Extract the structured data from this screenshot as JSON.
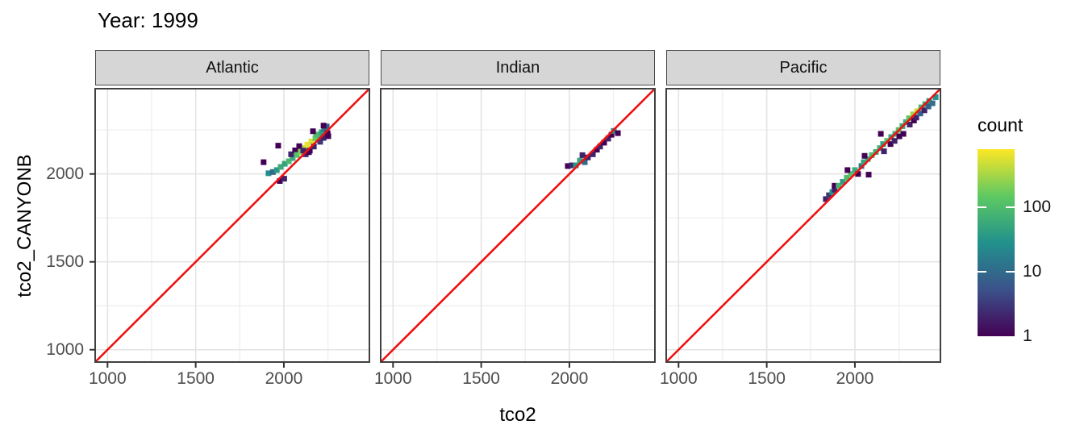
{
  "title": "Year: 1999",
  "legend": {
    "title": "count",
    "tick_values": [
      100,
      10,
      1
    ],
    "scale": "log10",
    "max_count": 800
  },
  "colors": {
    "background": "#ffffff",
    "panel_border": "#404040",
    "strip_fill": "#d6d6d6",
    "strip_border": "#4a4a4a",
    "grid_major": "#e4e4e4",
    "grid_minor": "#f0f0f0",
    "tick_mark": "#333333",
    "tick_label": "#4d4d4d",
    "identity_line": "#ee1111",
    "viridis_stops": [
      "#440154",
      "#3b528b",
      "#21918c",
      "#5ec962",
      "#fde725"
    ]
  },
  "chart_data": {
    "type": "heatmap",
    "subtype": "bin2d faceted scatter (geom_bin2d with y=x reference line)",
    "title": "Year: 1999",
    "xlabel": "tco2",
    "ylabel": "tco2_CANYONB",
    "x_range": [
      930,
      2485
    ],
    "y_range": [
      930,
      2485
    ],
    "x_ticks": [
      1000,
      1500,
      2000
    ],
    "y_ticks": [
      1000,
      1500,
      2000
    ],
    "minor_ticks": [
      1250,
      1750,
      2250
    ],
    "grid": true,
    "legend_position": "right",
    "bin_size": 32,
    "fill_legend": {
      "title": "count",
      "ticks": [
        1,
        10,
        100
      ],
      "scale": "log10",
      "palette": "viridis"
    },
    "reference_line": "y = x (red)",
    "facets": [
      {
        "label": "Atlantic",
        "bins": [
          [
            1885,
            2067,
            1
          ],
          [
            1968,
            2161,
            1
          ],
          [
            1913,
            2004,
            25
          ],
          [
            1938,
            2011,
            10
          ],
          [
            1960,
            2022,
            35
          ],
          [
            1977,
            1960,
            1
          ],
          [
            2002,
            1973,
            2
          ],
          [
            1982,
            2040,
            60
          ],
          [
            2005,
            2058,
            45
          ],
          [
            2028,
            2072,
            90
          ],
          [
            2050,
            2090,
            60
          ],
          [
            2041,
            2112,
            2
          ],
          [
            2064,
            2134,
            1
          ],
          [
            2087,
            2158,
            1
          ],
          [
            2073,
            2108,
            120
          ],
          [
            2096,
            2126,
            220
          ],
          [
            2119,
            2147,
            400
          ],
          [
            2133,
            2167,
            650
          ],
          [
            2156,
            2185,
            550
          ],
          [
            2110,
            2133,
            2
          ],
          [
            2124,
            2112,
            2
          ],
          [
            2147,
            2133,
            1
          ],
          [
            2170,
            2156,
            2
          ],
          [
            2142,
            2124,
            1
          ],
          [
            2179,
            2203,
            160
          ],
          [
            2183,
            2225,
            110
          ],
          [
            2197,
            2220,
            90
          ],
          [
            2215,
            2238,
            40
          ],
          [
            2229,
            2256,
            15
          ],
          [
            2243,
            2270,
            8
          ],
          [
            2206,
            2183,
            3
          ],
          [
            2225,
            2205,
            2
          ],
          [
            2248,
            2232,
            1
          ],
          [
            2252,
            2215,
            1
          ],
          [
            2225,
            2275,
            1
          ],
          [
            2165,
            2243,
            1
          ]
        ]
      },
      {
        "label": "Indian",
        "bins": [
          [
            1991,
            2045,
            1
          ],
          [
            2014,
            2049,
            2
          ],
          [
            2037,
            2049,
            35
          ],
          [
            2060,
            2076,
            50
          ],
          [
            2087,
            2067,
            10
          ],
          [
            2074,
            2107,
            2
          ],
          [
            2105,
            2094,
            2
          ],
          [
            2133,
            2112,
            2
          ],
          [
            2156,
            2138,
            1
          ],
          [
            2174,
            2156,
            2
          ],
          [
            2197,
            2178,
            1
          ],
          [
            2220,
            2201,
            2
          ],
          [
            2239,
            2223,
            1
          ],
          [
            2252,
            2245,
            30
          ],
          [
            2275,
            2232,
            1
          ]
        ]
      },
      {
        "label": "Pacific",
        "bins": [
          [
            1835,
            1857,
            2
          ],
          [
            1853,
            1879,
            3
          ],
          [
            1872,
            1897,
            30
          ],
          [
            1885,
            1911,
            2
          ],
          [
            1885,
            1933,
            1
          ],
          [
            1908,
            1933,
            80
          ],
          [
            1931,
            1955,
            40
          ],
          [
            1954,
            1978,
            100
          ],
          [
            1977,
            2000,
            120
          ],
          [
            2000,
            2022,
            60
          ],
          [
            2018,
            2000,
            1
          ],
          [
            1958,
            2022,
            1
          ],
          [
            2037,
            2045,
            15
          ],
          [
            2050,
            2067,
            50
          ],
          [
            2073,
            2085,
            60
          ],
          [
            2096,
            2107,
            100
          ],
          [
            2119,
            2125,
            70
          ],
          [
            2055,
            2103,
            1
          ],
          [
            2078,
            1996,
            1
          ],
          [
            2142,
            2147,
            60
          ],
          [
            2160,
            2170,
            45
          ],
          [
            2183,
            2188,
            110
          ],
          [
            2206,
            2210,
            50
          ],
          [
            2229,
            2228,
            60
          ],
          [
            2165,
            2129,
            2
          ],
          [
            2147,
            2228,
            1
          ],
          [
            2202,
            2170,
            1
          ],
          [
            2225,
            2188,
            2
          ],
          [
            2248,
            2250,
            130
          ],
          [
            2270,
            2272,
            60
          ],
          [
            2289,
            2295,
            70
          ],
          [
            2307,
            2317,
            150
          ],
          [
            2252,
            2214,
            1
          ],
          [
            2275,
            2228,
            1
          ],
          [
            2311,
            2281,
            2
          ],
          [
            2330,
            2339,
            300
          ],
          [
            2353,
            2357,
            450
          ],
          [
            2376,
            2379,
            90
          ],
          [
            2399,
            2397,
            60
          ],
          [
            2421,
            2415,
            40
          ],
          [
            2335,
            2304,
            1
          ],
          [
            2348,
            2321,
            2
          ],
          [
            2371,
            2344,
            8
          ],
          [
            2394,
            2362,
            2
          ],
          [
            2417,
            2384,
            8
          ],
          [
            2440,
            2402,
            12
          ],
          [
            2458,
            2437,
            30
          ]
        ]
      }
    ]
  }
}
